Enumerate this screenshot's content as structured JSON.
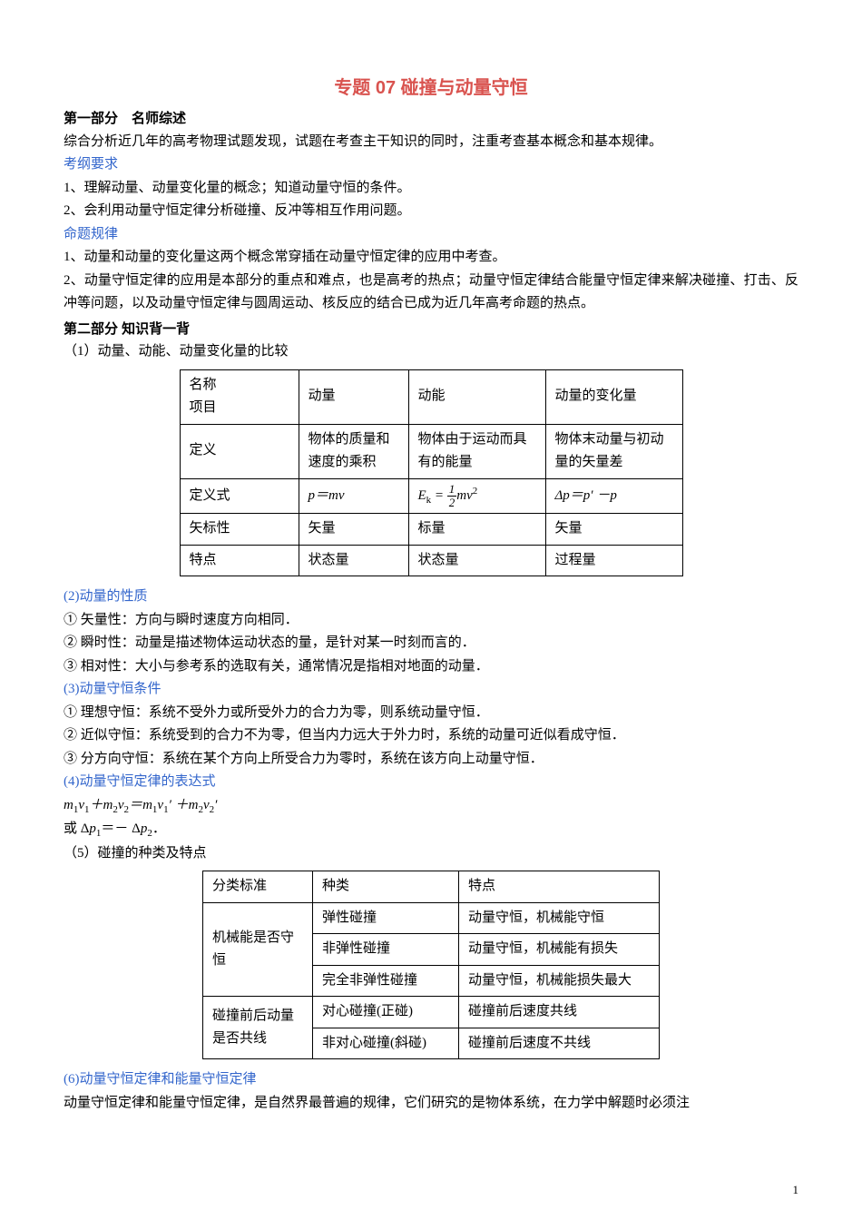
{
  "title": "专题 07 碰撞与动量守恒",
  "part1_header": "第一部分　名师综述",
  "intro": "综合分析近几年的高考物理试题发现，试题在考查主干知识的同时，注重考查基本概念和基本规律。",
  "kaogang_label": "考纲要求",
  "kaogang1": "1、理解动量、动量变化量的概念；知道动量守恒的条件。",
  "kaogang2": "2、会利用动量守恒定律分析碰撞、反冲等相互作用问题。",
  "mingti_label": "命题规律",
  "mingti1": "1、动量和动量的变化量这两个概念常穿插在动量守恒定律的应用中考查。",
  "mingti2": "2、动量守恒定律的应用是本部分的重点和难点，也是高考的热点；动量守恒定律结合能量守恒定律来解决碰撞、打击、反冲等问题，以及动量守恒定律与圆周运动、核反应的结合已成为近几年高考命题的热点。",
  "part2_header": "第二部分 知识背一背",
  "sec1_label": "（1）动量、动能、动量变化量的比较",
  "table1": {
    "r1": {
      "c1a": "名称",
      "c1b": "项目",
      "c2": "动量",
      "c3": "动能",
      "c4": "动量的变化量"
    },
    "r2": {
      "c1": "定义",
      "c2": "物体的质量和速度的乘积",
      "c3": "物体由于运动而具有的能量",
      "c4": "物体末动量与初动量的矢量差"
    },
    "r3": {
      "c1": "定义式",
      "c2": "p＝mv",
      "c3_pre": "E",
      "c3_sub": "k",
      "c3_eq": " =",
      "c3_num": "1",
      "c3_den": "2",
      "c3_post": "mv",
      "c3_sup": "2",
      "c4": "Δp＝p′ －p"
    },
    "r4": {
      "c1": "矢标性",
      "c2": "矢量",
      "c3": "标量",
      "c4": "矢量"
    },
    "r5": {
      "c1": "特点",
      "c2": "状态量",
      "c3": "状态量",
      "c4": "过程量"
    }
  },
  "sec2_label": "(2)动量的性质",
  "sec2_1": "① 矢量性：方向与瞬时速度方向相同．",
  "sec2_2": "② 瞬时性：动量是描述物体运动状态的量，是针对某一时刻而言的．",
  "sec2_3": "③ 相对性：大小与参考系的选取有关，通常情况是指相对地面的动量．",
  "sec3_label": "(3)动量守恒条件",
  "sec3_1": "① 理想守恒：系统不受外力或所受外力的合力为零，则系统动量守恒．",
  "sec3_2": "② 近似守恒：系统受到的合力不为零，但当内力远大于外力时，系统的动量可近似看成守恒．",
  "sec3_3": "③ 分方向守恒：系统在某个方向上所受合力为零时，系统在该方向上动量守恒．",
  "sec4_label": "(4)动量守恒定律的表达式",
  "sec4_eq1_a": "m",
  "sec4_eq1_b": "1",
  "sec4_eq1_c": "v",
  "sec4_eq1_d": "1",
  "sec4_eq1_plus": "＋",
  "sec4_eq1_e": "m",
  "sec4_eq1_f": "2",
  "sec4_eq1_g": "v",
  "sec4_eq1_h": "2",
  "sec4_eq1_eq": "＝",
  "sec4_eq1_i": "m",
  "sec4_eq1_j": "1",
  "sec4_eq1_k": "v",
  "sec4_eq1_l": "1",
  "sec4_eq1_m": "′ ＋",
  "sec4_eq1_n": "m",
  "sec4_eq1_o": "2",
  "sec4_eq1_p": "v",
  "sec4_eq1_q": "2",
  "sec4_eq1_r": "′",
  "sec4_eq2_pre": "或 Δ",
  "sec4_eq2_a": "p",
  "sec4_eq2_b": "1",
  "sec4_eq2_mid": "＝－ Δ",
  "sec4_eq2_c": "p",
  "sec4_eq2_d": "2",
  "sec4_eq2_end": "．",
  "sec5_label": "（5）碰撞的种类及特点",
  "table2": {
    "h1": "分类标准",
    "h2": "种类",
    "h3": "特点",
    "r1c1": "机械能是否守恒",
    "r1a2": "弹性碰撞",
    "r1a3": "动量守恒，机械能守恒",
    "r1b2": "非弹性碰撞",
    "r1b3": "动量守恒，机械能有损失",
    "r1c2": "完全非弹性碰撞",
    "r1c3": "动量守恒，机械能损失最大",
    "r2c1": "碰撞前后动量是否共线",
    "r2a2": "对心碰撞(正碰)",
    "r2a3": "碰撞前后速度共线",
    "r2b2": "非对心碰撞(斜碰)",
    "r2b3": "碰撞前后速度不共线"
  },
  "sec6_label": "(6)动量守恒定律和能量守恒定律",
  "sec6_text": "动量守恒定律和能量守恒定律，是自然界最普遍的规律，它们研究的是物体系统，在力学中解题时必须注",
  "pagenum": "1"
}
